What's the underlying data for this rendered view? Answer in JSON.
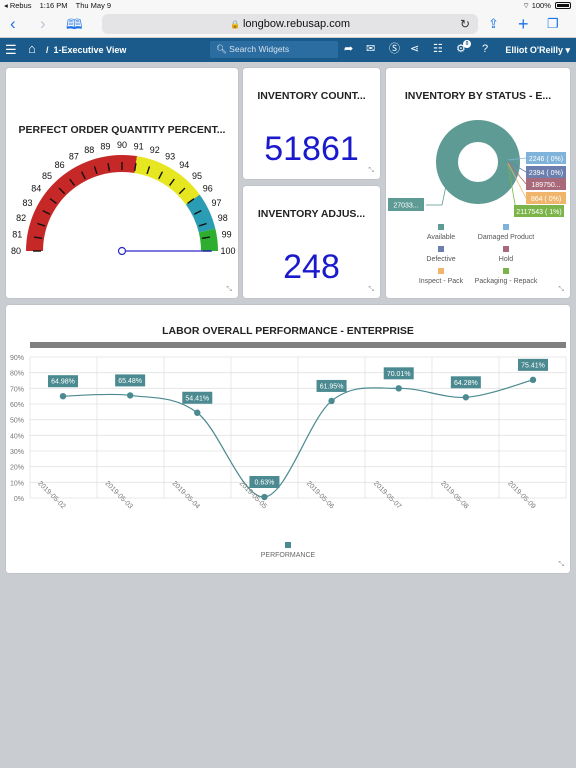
{
  "status_bar": {
    "back_app": "◂ Rebus",
    "time": "1:16 PM",
    "date": "Thu May 9",
    "battery": "100%"
  },
  "browser": {
    "url": "longbow.rebusap.com"
  },
  "header": {
    "breadcrumb_separator": "/",
    "breadcrumb": "1-Executive View",
    "search_placeholder": "Search Widgets",
    "notification_count": "0",
    "user": "Elliot O'Reilly ▾"
  },
  "widgets": {
    "perfect_order": {
      "title": "PERFECT ORDER QUANTITY PERCENT...",
      "value": 100,
      "min": 80,
      "max": 100,
      "scale_labels": [
        "80",
        "81",
        "82",
        "83",
        "84",
        "85",
        "86",
        "87",
        "88",
        "89",
        "90",
        "91",
        "92",
        "93",
        "94",
        "95",
        "96",
        "97",
        "98",
        "99",
        "100"
      ],
      "bands": [
        {
          "from": 80,
          "to": 91,
          "color": "#c62828"
        },
        {
          "from": 91,
          "to": 96,
          "color": "#e6e621"
        },
        {
          "from": 96,
          "to": 98.5,
          "color": "#2a9db5"
        },
        {
          "from": 98.5,
          "to": 100,
          "color": "#2eae2e"
        }
      ]
    },
    "inventory_count": {
      "title": "INVENTORY COUNT...",
      "value": "51861"
    },
    "inventory_adjustments": {
      "title": "INVENTORY ADJUS...",
      "value": "248"
    },
    "inventory_status": {
      "title": "INVENTORY BY STATUS - E...",
      "slice_labels": [
        "27033...",
        "2246 ( 0%)",
        "2394 ( 0%)",
        "189750...",
        "864 ( 0%)",
        "2117543 ( 1%)"
      ],
      "legend": [
        {
          "label": "Available",
          "color": "#5f9b95"
        },
        {
          "label": "Damaged Product",
          "color": "#7fb3d9"
        },
        {
          "label": "Defective",
          "color": "#6c7fae"
        },
        {
          "label": "Hold",
          "color": "#a86a7a"
        },
        {
          "label": "Inspect - Pack",
          "color": "#f0b46a"
        },
        {
          "label": "Packaging - Repack",
          "color": "#7bb54a"
        }
      ]
    },
    "labor_performance": {
      "title": "LABOR OVERALL PERFORMANCE - ENTERPRISE",
      "legend": "PERFORMANCE",
      "y_ticks": [
        "0%",
        "10%",
        "20%",
        "30%",
        "40%",
        "50%",
        "60%",
        "70%",
        "80%",
        "90%"
      ]
    }
  },
  "chart_data": {
    "type": "line",
    "title": "LABOR OVERALL PERFORMANCE - ENTERPRISE",
    "x": [
      "2019-05-02",
      "2019-05-03",
      "2019-05-04",
      "2019-05-05",
      "2019-05-06",
      "2019-05-07",
      "2019-05-08",
      "2019-05-09"
    ],
    "series": [
      {
        "name": "PERFORMANCE",
        "values": [
          64.98,
          65.48,
          54.41,
          0.63,
          61.95,
          70.01,
          64.28,
          75.41
        ],
        "labels": [
          "64.98%",
          "65.48%",
          "54.41%",
          "0.63%",
          "61.95%",
          "70.01%",
          "64.28%",
          "75.41%"
        ],
        "color": "#4a8a90"
      }
    ],
    "ylim": [
      0,
      90
    ],
    "grid": true,
    "legend": "bottom"
  }
}
